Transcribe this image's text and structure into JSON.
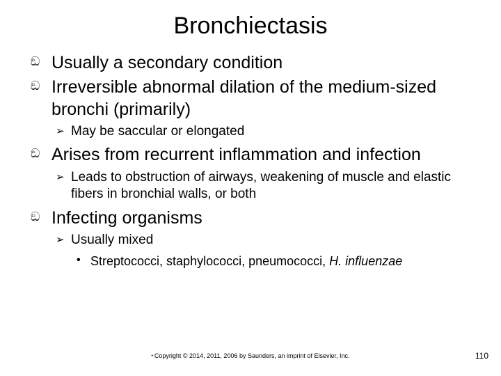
{
  "title": "Bronchiectasis",
  "bullets": {
    "l1_a": "Usually a secondary condition",
    "l1_b": "Irreversible abnormal dilation of the medium-sized bronchi (primarily)",
    "l2_a": "May be saccular or elongated",
    "l1_c": "Arises from recurrent inflammation and infection",
    "l2_b": "Leads to obstruction of airways, weakening of muscle and elastic fibers in bronchial walls, or both",
    "l1_d": "Infecting organisms",
    "l2_c": "Usually mixed",
    "l3_a_prefix": "Streptococci, staphylococci, pneumococci, ",
    "l3_a_italic": "H. influenzae"
  },
  "glyphs": {
    "script": "ඞ",
    "arrow": "➢",
    "dot": "•"
  },
  "footer": "Copyright © 2014, 2011, 2006 by Saunders, an imprint of Elsevier, Inc.",
  "page_number": "110",
  "colors": {
    "background": "#ffffff",
    "text": "#000000"
  }
}
